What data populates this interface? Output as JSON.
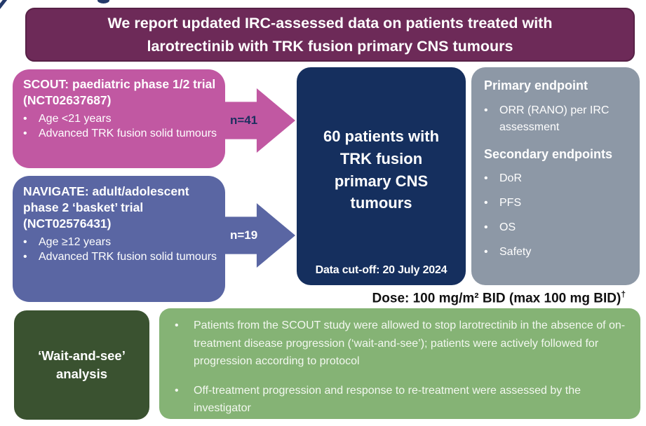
{
  "banner": {
    "title": "We report updated IRC-assessed data on patients treated with larotrectinib with TRK fusion primary CNS tumours"
  },
  "scout_box": {
    "title": "SCOUT: paediatric phase 1/2 trial (NCT02637687)",
    "bullets": [
      "Age <21 years",
      "Advanced TRK fusion solid tumours"
    ]
  },
  "scout_arrow": {
    "label": "n=41"
  },
  "navigate_box": {
    "title": "NAVIGATE: adult/adolescent phase 2 ‘basket’ trial (NCT02576431)",
    "bullets": [
      "Age ≥12 years",
      "Advanced TRK fusion solid tumours"
    ]
  },
  "navigate_arrow": {
    "label": "n=19"
  },
  "center_box": {
    "headline": "60 patients with TRK fusion primary CNS tumours",
    "data_cutoff": "Data cut-off: 20 July 2024"
  },
  "endpoints_box": {
    "primary_heading": "Primary endpoint",
    "primary_bullets": [
      "ORR (RANO) per IRC assessment"
    ],
    "secondary_heading": "Secondary endpoints",
    "secondary_bullets": [
      "DoR",
      "PFS",
      "OS",
      "Safety"
    ]
  },
  "dose_note": {
    "text": "Dose: 100 mg/m² BID (max 100 mg BID)",
    "dagger": "†"
  },
  "wait_and_see_box": {
    "label": "‘Wait-and-see’ analysis"
  },
  "notes_box": {
    "bullets": [
      "Patients from the SCOUT study were allowed to stop larotrectinib in the absence of on-treatment disease progression (‘wait-and-see’); patients were actively followed for progression according to protocol",
      "Off-treatment progression and response to re-treatment were assessed by the investigator"
    ]
  },
  "colors": {
    "banner_bg": "#6d2a58",
    "banner_border": "#572146",
    "scout_pink": "#c158a2",
    "navigate_purple": "#5a66a3",
    "center_navy": "#152f5e",
    "endpoints_gray": "#8d98a6",
    "wait_green_dark": "#3a5230",
    "notes_green_light": "#85b375",
    "arrow_label_navy": "#1c2f5f",
    "dose_text": "#111111"
  }
}
